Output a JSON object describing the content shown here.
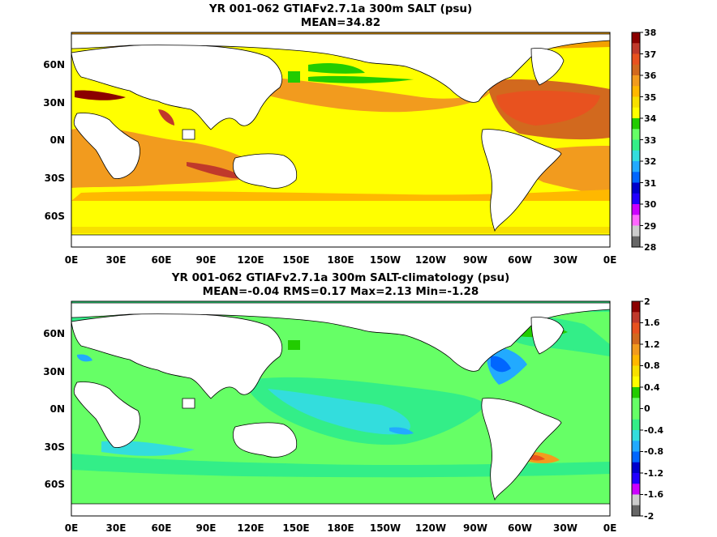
{
  "chart_data": [
    {
      "type": "heatmap",
      "title": "YR 001-062 GTIAFv2.7.1a 300m SALT (psu)",
      "subtitle": "MEAN=34.82",
      "x_ticks": [
        "0E",
        "30E",
        "60E",
        "90E",
        "120E",
        "150E",
        "180E",
        "150W",
        "120W",
        "90W",
        "60W",
        "30W",
        "0E"
      ],
      "y_ticks": [
        "60N",
        "30N",
        "0N",
        "30S",
        "60S"
      ],
      "colorbar": {
        "ticks": [
          "38",
          "37",
          "36",
          "35",
          "34",
          "33",
          "32",
          "31",
          "30",
          "29",
          "28"
        ],
        "colors": [
          "#8b0000",
          "#c0392b",
          "#e8521f",
          "#d2691e",
          "#f29b1e",
          "#ffb800",
          "#f7e000",
          "#ffff00",
          "#22cc00",
          "#66ff66",
          "#33ee88",
          "#33dddd",
          "#22aaff",
          "#0066ff",
          "#0000cc",
          "#2200ff",
          "#cc00ff",
          "#ff66ff",
          "#cccccc",
          "#666666"
        ]
      }
    },
    {
      "type": "heatmap",
      "title": "YR 001-062 GTIAFv2.7.1a 300m SALT-climatology (psu)",
      "subtitle": "MEAN=-0.04   RMS=0.17   Max=2.13   Min=-1.28",
      "x_ticks": [
        "0E",
        "30E",
        "60E",
        "90E",
        "120E",
        "150E",
        "180E",
        "150W",
        "120W",
        "90W",
        "60W",
        "30W",
        "0E"
      ],
      "y_ticks": [
        "60N",
        "30N",
        "0N",
        "30S",
        "60S"
      ],
      "colorbar": {
        "ticks": [
          "2",
          "1.6",
          "1.2",
          "0.8",
          "0.4",
          "0",
          "-0.4",
          "-0.8",
          "-1.2",
          "-1.6",
          "-2"
        ],
        "colors": [
          "#8b0000",
          "#c0392b",
          "#e8521f",
          "#d2691e",
          "#f29b1e",
          "#ffb800",
          "#f7e000",
          "#ffff00",
          "#22cc00",
          "#66ff66",
          "#66ff66",
          "#33ee88",
          "#33dddd",
          "#22aaff",
          "#0066ff",
          "#0000cc",
          "#2200ff",
          "#cc00ff",
          "#cccccc",
          "#666666"
        ]
      }
    }
  ]
}
